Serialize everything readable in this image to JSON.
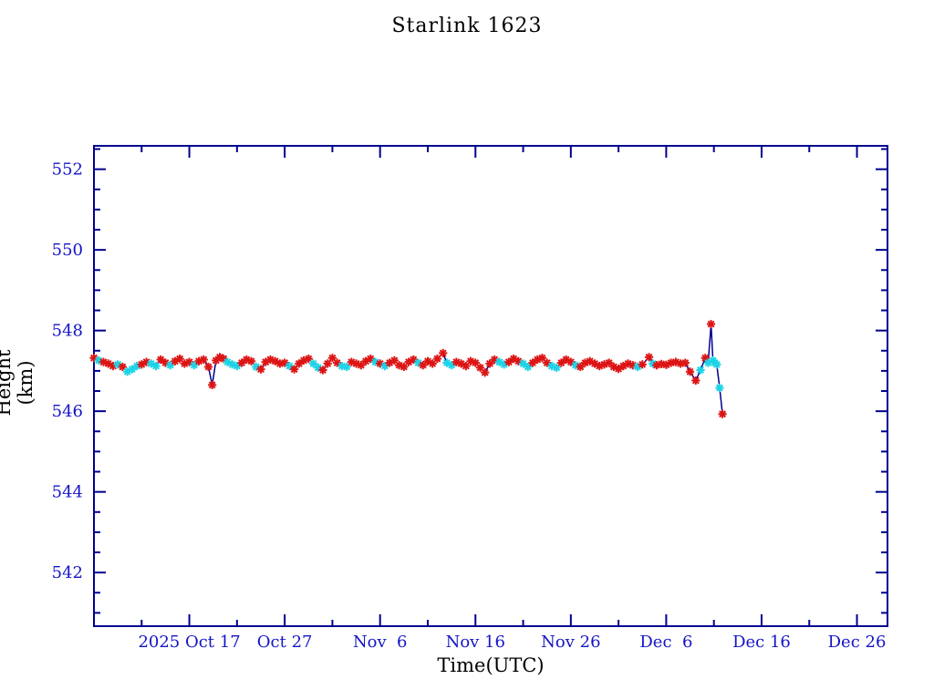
{
  "chart_data": {
    "type": "line",
    "title": "Starlink 1623",
    "xlabel": "Time(UTC)",
    "ylabel": "Height (km)",
    "x_axis": {
      "min_day": 0,
      "max_day": 83.2,
      "major_ticks": [
        {
          "day": 10,
          "label": "2025 Oct 17"
        },
        {
          "day": 20,
          "label": "Oct 27"
        },
        {
          "day": 30,
          "label": "Nov  6"
        },
        {
          "day": 40,
          "label": "Nov 16"
        },
        {
          "day": 50,
          "label": "Nov 26"
        },
        {
          "day": 60,
          "label": "Dec  6"
        },
        {
          "day": 70,
          "label": "Dec 16"
        },
        {
          "day": 80,
          "label": "Dec 26"
        }
      ],
      "minor_tick_days": [
        5,
        15,
        25,
        35,
        45,
        55,
        65,
        75
      ]
    },
    "y_axis": {
      "min": 540.67,
      "max": 552.58,
      "major_ticks": [
        542,
        544,
        546,
        548,
        550,
        552
      ],
      "minor_step": 0.5
    },
    "colors": {
      "red_marker": "#dd1515",
      "cyan_marker": "#1ed3e6",
      "line": "#00008f",
      "axis": "#00008f",
      "text": "#1414c8"
    },
    "series_points": [
      [
        0,
        547.32,
        "r"
      ],
      [
        0.5,
        547.26,
        "c"
      ],
      [
        1,
        547.22,
        "r"
      ],
      [
        1.5,
        547.18,
        "r"
      ],
      [
        2,
        547.12,
        "r"
      ],
      [
        2.5,
        547.16,
        "c"
      ],
      [
        3,
        547.1,
        "r"
      ],
      [
        3.5,
        546.98,
        "c"
      ],
      [
        4,
        547.04,
        "c"
      ],
      [
        4.5,
        547.12,
        "c"
      ],
      [
        5,
        547.16,
        "r"
      ],
      [
        5.5,
        547.22,
        "r"
      ],
      [
        6,
        547.18,
        "c"
      ],
      [
        6.5,
        547.12,
        "c"
      ],
      [
        7,
        547.28,
        "r"
      ],
      [
        7.5,
        547.2,
        "r"
      ],
      [
        8,
        547.14,
        "c"
      ],
      [
        8.5,
        547.24,
        "r"
      ],
      [
        9,
        547.3,
        "r"
      ],
      [
        9.5,
        547.18,
        "r"
      ],
      [
        10,
        547.22,
        "r"
      ],
      [
        10.5,
        547.14,
        "c"
      ],
      [
        11,
        547.24,
        "r"
      ],
      [
        11.5,
        547.28,
        "r"
      ],
      [
        12,
        547.1,
        "r"
      ],
      [
        12.4,
        546.65,
        "r"
      ],
      [
        12.8,
        547.26,
        "r"
      ],
      [
        13.2,
        547.34,
        "r"
      ],
      [
        13.6,
        547.3,
        "r"
      ],
      [
        14,
        547.22,
        "c"
      ],
      [
        14.5,
        547.16,
        "c"
      ],
      [
        15,
        547.12,
        "c"
      ],
      [
        15.5,
        547.2,
        "r"
      ],
      [
        16,
        547.28,
        "r"
      ],
      [
        16.5,
        547.24,
        "r"
      ],
      [
        17,
        547.1,
        "c"
      ],
      [
        17.5,
        547.04,
        "r"
      ],
      [
        18,
        547.22,
        "r"
      ],
      [
        18.5,
        547.28,
        "r"
      ],
      [
        19,
        547.24,
        "r"
      ],
      [
        19.5,
        547.18,
        "r"
      ],
      [
        20,
        547.2,
        "r"
      ],
      [
        20.5,
        547.12,
        "c"
      ],
      [
        21,
        547.04,
        "r"
      ],
      [
        21.5,
        547.18,
        "r"
      ],
      [
        22,
        547.26,
        "r"
      ],
      [
        22.5,
        547.3,
        "r"
      ],
      [
        23,
        547.18,
        "c"
      ],
      [
        23.5,
        547.08,
        "c"
      ],
      [
        24,
        547.02,
        "r"
      ],
      [
        24.5,
        547.18,
        "r"
      ],
      [
        25,
        547.32,
        "r"
      ],
      [
        25.5,
        547.2,
        "r"
      ],
      [
        26,
        547.12,
        "c"
      ],
      [
        26.5,
        547.1,
        "c"
      ],
      [
        27,
        547.22,
        "r"
      ],
      [
        27.5,
        547.18,
        "r"
      ],
      [
        28,
        547.14,
        "r"
      ],
      [
        28.5,
        547.24,
        "r"
      ],
      [
        29,
        547.3,
        "r"
      ],
      [
        29.5,
        547.22,
        "c"
      ],
      [
        30,
        547.18,
        "r"
      ],
      [
        30.5,
        547.12,
        "c"
      ],
      [
        31,
        547.2,
        "r"
      ],
      [
        31.5,
        547.26,
        "r"
      ],
      [
        32,
        547.14,
        "r"
      ],
      [
        32.5,
        547.1,
        "r"
      ],
      [
        33,
        547.22,
        "r"
      ],
      [
        33.5,
        547.28,
        "r"
      ],
      [
        34,
        547.2,
        "c"
      ],
      [
        34.5,
        547.14,
        "r"
      ],
      [
        35,
        547.24,
        "r"
      ],
      [
        35.5,
        547.18,
        "r"
      ],
      [
        36,
        547.3,
        "r"
      ],
      [
        36.6,
        547.44,
        "r"
      ],
      [
        37,
        547.2,
        "c"
      ],
      [
        37.5,
        547.14,
        "c"
      ],
      [
        38,
        547.22,
        "r"
      ],
      [
        38.5,
        547.18,
        "r"
      ],
      [
        39,
        547.12,
        "r"
      ],
      [
        39.5,
        547.24,
        "r"
      ],
      [
        40,
        547.2,
        "r"
      ],
      [
        40.5,
        547.08,
        "r"
      ],
      [
        41,
        546.96,
        "r"
      ],
      [
        41.5,
        547.18,
        "r"
      ],
      [
        42,
        547.28,
        "r"
      ],
      [
        42.5,
        547.22,
        "c"
      ],
      [
        43,
        547.16,
        "c"
      ],
      [
        43.5,
        547.22,
        "r"
      ],
      [
        44,
        547.3,
        "r"
      ],
      [
        44.5,
        547.24,
        "r"
      ],
      [
        45,
        547.18,
        "c"
      ],
      [
        45.5,
        547.1,
        "c"
      ],
      [
        46,
        547.2,
        "r"
      ],
      [
        46.5,
        547.28,
        "r"
      ],
      [
        47,
        547.32,
        "r"
      ],
      [
        47.5,
        547.2,
        "r"
      ],
      [
        48,
        547.12,
        "c"
      ],
      [
        48.5,
        547.08,
        "c"
      ],
      [
        49,
        547.2,
        "r"
      ],
      [
        49.5,
        547.28,
        "r"
      ],
      [
        50,
        547.22,
        "r"
      ],
      [
        50.5,
        547.14,
        "c"
      ],
      [
        51,
        547.1,
        "r"
      ],
      [
        51.5,
        547.2,
        "r"
      ],
      [
        52,
        547.24,
        "r"
      ],
      [
        52.5,
        547.18,
        "r"
      ],
      [
        53,
        547.12,
        "r"
      ],
      [
        53.5,
        547.16,
        "r"
      ],
      [
        54,
        547.2,
        "r"
      ],
      [
        54.5,
        547.1,
        "r"
      ],
      [
        55,
        547.05,
        "r"
      ],
      [
        55.5,
        547.12,
        "r"
      ],
      [
        56,
        547.18,
        "r"
      ],
      [
        56.5,
        547.14,
        "r"
      ],
      [
        57,
        547.1,
        "c"
      ],
      [
        57.5,
        547.16,
        "r"
      ],
      [
        58.2,
        547.34,
        "r"
      ],
      [
        58.6,
        547.18,
        "c"
      ],
      [
        59,
        547.14,
        "r"
      ],
      [
        59.5,
        547.17,
        "r"
      ],
      [
        60,
        547.15,
        "r"
      ],
      [
        60.5,
        547.2,
        "r"
      ],
      [
        61,
        547.22,
        "r"
      ],
      [
        61.5,
        547.18,
        "r"
      ],
      [
        62,
        547.2,
        "r"
      ],
      [
        62.5,
        546.98,
        "r"
      ],
      [
        63.1,
        546.76,
        "r"
      ],
      [
        63.6,
        547.02,
        "c"
      ],
      [
        64.1,
        547.32,
        "r"
      ],
      [
        64.4,
        547.2,
        "c"
      ],
      [
        64.7,
        548.16,
        "r"
      ],
      [
        64.9,
        547.26,
        "c"
      ],
      [
        65.1,
        547.2,
        "c"
      ],
      [
        65.3,
        547.16,
        "c"
      ],
      [
        65.6,
        546.58,
        "c"
      ],
      [
        65.9,
        545.93,
        "r"
      ]
    ]
  }
}
